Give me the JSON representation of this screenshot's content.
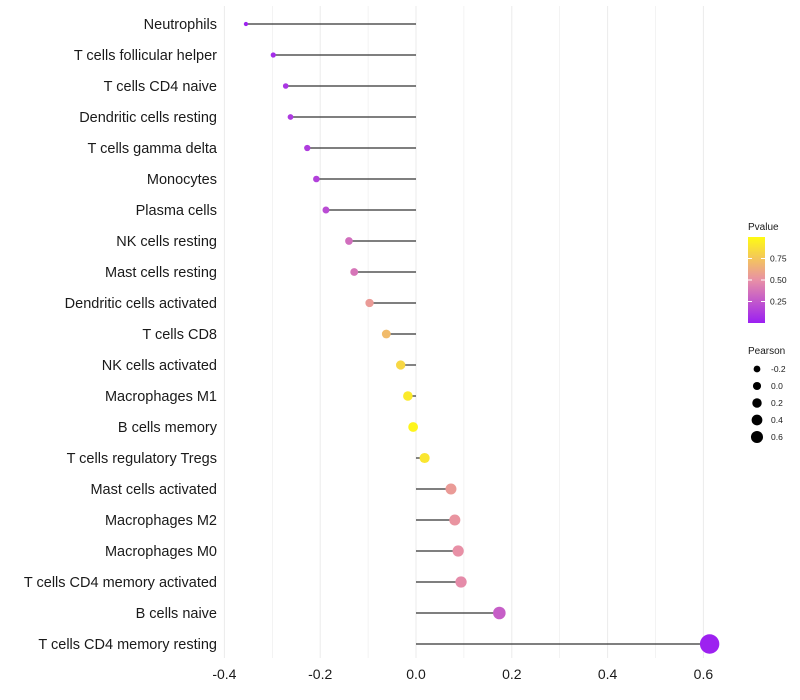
{
  "chart_data": {
    "type": "lollipop",
    "title": "",
    "xlabel": "",
    "ylabel": "",
    "xlim": [
      -0.4,
      0.65
    ],
    "x_ticks": [
      "-0.4",
      "-0.2",
      "0.0",
      "0.2",
      "0.4",
      "0.6"
    ],
    "x_tick_values": [
      -0.4,
      -0.2,
      0.0,
      0.2,
      0.4,
      0.6
    ],
    "grid": true,
    "categories": [
      "Neutrophils",
      "T cells follicular helper",
      "T cells CD4 naive",
      "Dendritic cells resting",
      "T cells gamma delta",
      "Monocytes",
      "Plasma cells",
      "NK cells resting",
      "Mast cells resting",
      "Dendritic cells activated",
      "T cells CD8",
      "NK cells activated",
      "Macrophages M1",
      "B cells memory",
      "T cells regulatory  Tregs ",
      "Mast cells activated",
      "Macrophages M2",
      "Macrophages M0",
      "T cells CD4 memory activated",
      "B cells naive",
      "T cells CD4 memory resting"
    ],
    "pearson": [
      -0.355,
      -0.298,
      -0.272,
      -0.262,
      -0.227,
      -0.208,
      -0.188,
      -0.14,
      -0.129,
      -0.097,
      -0.062,
      -0.032,
      -0.017,
      -0.006,
      0.018,
      0.073,
      0.081,
      0.088,
      0.094,
      0.174,
      0.613
    ],
    "pvalue": [
      0.02,
      0.06,
      0.1,
      0.12,
      0.13,
      0.15,
      0.2,
      0.35,
      0.38,
      0.55,
      0.7,
      0.83,
      0.92,
      0.97,
      0.9,
      0.55,
      0.52,
      0.5,
      0.48,
      0.28,
      0.01
    ],
    "legend": {
      "color_title": "Pvalue",
      "color_ticks": [
        "0.75",
        "0.50",
        "0.25"
      ],
      "color_tick_values": [
        0.75,
        0.5,
        0.25
      ],
      "color_range": [
        0.0,
        1.0
      ],
      "color_low": "#9b1ff2",
      "color_mid": "#e890a6",
      "color_high": "#fffb12",
      "size_title": "Pearson",
      "size_entries": [
        "-0.2",
        "0.0",
        "0.2",
        "0.4",
        "0.6"
      ],
      "size_values": [
        -0.2,
        0.0,
        0.2,
        0.4,
        0.6
      ],
      "placement": "right"
    },
    "stem_color": "#333333",
    "grid_color": "#ebebeb"
  }
}
